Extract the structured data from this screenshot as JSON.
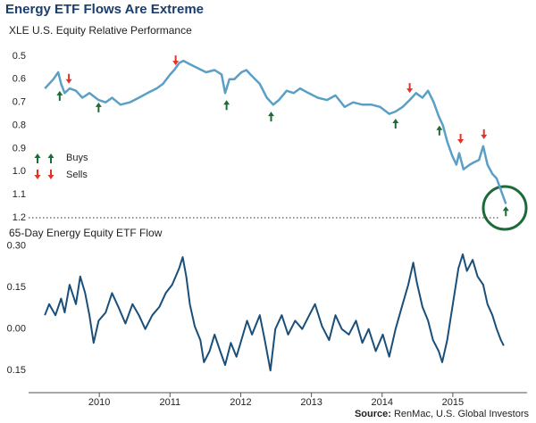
{
  "title": "Energy ETF Flows Are Extreme",
  "source_label": "Source:",
  "source": "RenMac, U.S. Global Investors",
  "chart_data": [
    {
      "type": "line",
      "title": "XLE U.S. Equity Relative Performance",
      "y_inverted": true,
      "xlim": [
        2009,
        2016.05
      ],
      "ylim": [
        0.45,
        1.2
      ],
      "yticks": [
        0.5,
        0.6,
        0.7,
        0.8,
        0.9,
        {
          "value": 1,
          "label": "1.0"
        },
        1.1,
        1.2
      ],
      "x": [
        2009.23,
        2009.29,
        2009.35,
        2009.42,
        2009.46,
        2009.51,
        2009.58,
        2009.67,
        2009.76,
        2009.86,
        2009.99,
        2010.09,
        2010.18,
        2010.3,
        2010.43,
        2010.56,
        2010.68,
        2010.81,
        2010.9,
        2011.0,
        2011.06,
        2011.13,
        2011.19,
        2011.25,
        2011.38,
        2011.51,
        2011.63,
        2011.73,
        2011.78,
        2011.84,
        2011.91,
        2012.01,
        2012.08,
        2012.14,
        2012.27,
        2012.37,
        2012.46,
        2012.54,
        2012.65,
        2012.75,
        2012.84,
        2012.96,
        2013.09,
        2013.22,
        2013.34,
        2013.47,
        2013.59,
        2013.72,
        2013.85,
        2013.97,
        2014.1,
        2014.19,
        2014.29,
        2014.39,
        2014.48,
        2014.57,
        2014.65,
        2014.73,
        2014.8,
        2014.86,
        2014.92,
        2014.99,
        2015.05,
        2015.09,
        2015.15,
        2015.24,
        2015.3,
        2015.37,
        2015.43,
        2015.49,
        2015.56,
        2015.62,
        2015.68,
        2015.75
      ],
      "series": [
        {
          "color": "#5b9fc7",
          "values": [
            0.64,
            0.62,
            0.6,
            0.57,
            0.62,
            0.66,
            0.64,
            0.65,
            0.68,
            0.66,
            0.69,
            0.7,
            0.68,
            0.71,
            0.7,
            0.68,
            0.66,
            0.64,
            0.62,
            0.58,
            0.56,
            0.53,
            0.52,
            0.53,
            0.55,
            0.57,
            0.56,
            0.58,
            0.66,
            0.6,
            0.6,
            0.57,
            0.56,
            0.58,
            0.62,
            0.68,
            0.71,
            0.69,
            0.65,
            0.66,
            0.64,
            0.66,
            0.68,
            0.69,
            0.67,
            0.72,
            0.7,
            0.71,
            0.71,
            0.72,
            0.75,
            0.74,
            0.72,
            0.69,
            0.66,
            0.68,
            0.65,
            0.7,
            0.76,
            0.8,
            0.87,
            0.93,
            0.97,
            0.92,
            0.99,
            0.97,
            0.96,
            0.95,
            0.89,
            0.97,
            1.01,
            1.03,
            1.08,
            1.14
          ]
        }
      ],
      "signals": [
        {
          "name": "Buys",
          "color": "#1e6b3a",
          "direction": "up",
          "x": [
            2009.44,
            2009.99,
            2011.8,
            2012.43,
            2014.19,
            2014.81,
            2015.75
          ],
          "y": [
            0.67,
            0.72,
            0.71,
            0.76,
            0.79,
            0.82,
            1.17
          ]
        },
        {
          "name": "Sells",
          "color": "#e2332b",
          "direction": "down",
          "x": [
            2009.57,
            2011.08,
            2014.39,
            2015.11,
            2015.44
          ],
          "y": [
            0.6,
            0.52,
            0.64,
            0.86,
            0.84
          ]
        }
      ]
    },
    {
      "type": "line",
      "title": "65-Day Energy Equity ETF Flow",
      "xlim": [
        2009,
        2016.05
      ],
      "xticks": [
        2010,
        2011,
        2012,
        2013,
        2014,
        2015
      ],
      "ylim": [
        -0.23,
        0.33
      ],
      "yticks": [
        {
          "value": 0.3,
          "label": "0.30"
        },
        0.15,
        {
          "value": 0,
          "label": "0.00"
        },
        {
          "value": -0.15,
          "label": "0.15"
        }
      ],
      "x": [
        2009.23,
        2009.29,
        2009.38,
        2009.46,
        2009.51,
        2009.58,
        2009.67,
        2009.73,
        2009.8,
        2009.86,
        2009.92,
        2009.99,
        2010.09,
        2010.18,
        2010.27,
        2010.37,
        2010.47,
        2010.56,
        2010.65,
        2010.75,
        2010.85,
        2010.94,
        2011.03,
        2011.13,
        2011.18,
        2011.23,
        2011.28,
        2011.35,
        2011.43,
        2011.48,
        2011.56,
        2011.63,
        2011.71,
        2011.78,
        2011.86,
        2011.94,
        2012.01,
        2012.09,
        2012.16,
        2012.27,
        2012.34,
        2012.42,
        2012.49,
        2012.58,
        2012.67,
        2012.77,
        2012.87,
        2012.97,
        2013.05,
        2013.15,
        2013.25,
        2013.34,
        2013.43,
        2013.53,
        2013.63,
        2013.72,
        2013.81,
        2013.91,
        2014.01,
        2014.1,
        2014.19,
        2014.29,
        2014.37,
        2014.44,
        2014.49,
        2014.57,
        2014.65,
        2014.72,
        2014.8,
        2014.85,
        2014.92,
        2015.0,
        2015.08,
        2015.14,
        2015.2,
        2015.28,
        2015.35,
        2015.43,
        2015.49,
        2015.56,
        2015.62,
        2015.68,
        2015.72
      ],
      "series": [
        {
          "color": "#1a4f7a",
          "values": [
            0.05,
            0.09,
            0.05,
            0.11,
            0.06,
            0.16,
            0.09,
            0.19,
            0.13,
            0.05,
            -0.05,
            0.03,
            0.06,
            0.13,
            0.08,
            0.02,
            0.09,
            0.05,
            0.0,
            0.05,
            0.08,
            0.13,
            0.16,
            0.22,
            0.26,
            0.19,
            0.09,
            0.01,
            -0.04,
            -0.12,
            -0.08,
            -0.02,
            -0.08,
            -0.13,
            -0.05,
            -0.1,
            -0.04,
            0.03,
            -0.02,
            0.05,
            -0.04,
            -0.15,
            0.0,
            0.05,
            -0.02,
            0.03,
            0.0,
            0.05,
            0.09,
            0.01,
            -0.04,
            0.05,
            0.0,
            -0.02,
            0.03,
            -0.05,
            0.0,
            -0.08,
            -0.02,
            -0.1,
            0.0,
            0.09,
            0.16,
            0.24,
            0.17,
            0.08,
            0.03,
            -0.04,
            -0.08,
            -0.12,
            -0.04,
            0.09,
            0.22,
            0.27,
            0.21,
            0.25,
            0.19,
            0.16,
            0.09,
            0.05,
            0.0,
            -0.04,
            -0.06
          ]
        }
      ]
    }
  ]
}
